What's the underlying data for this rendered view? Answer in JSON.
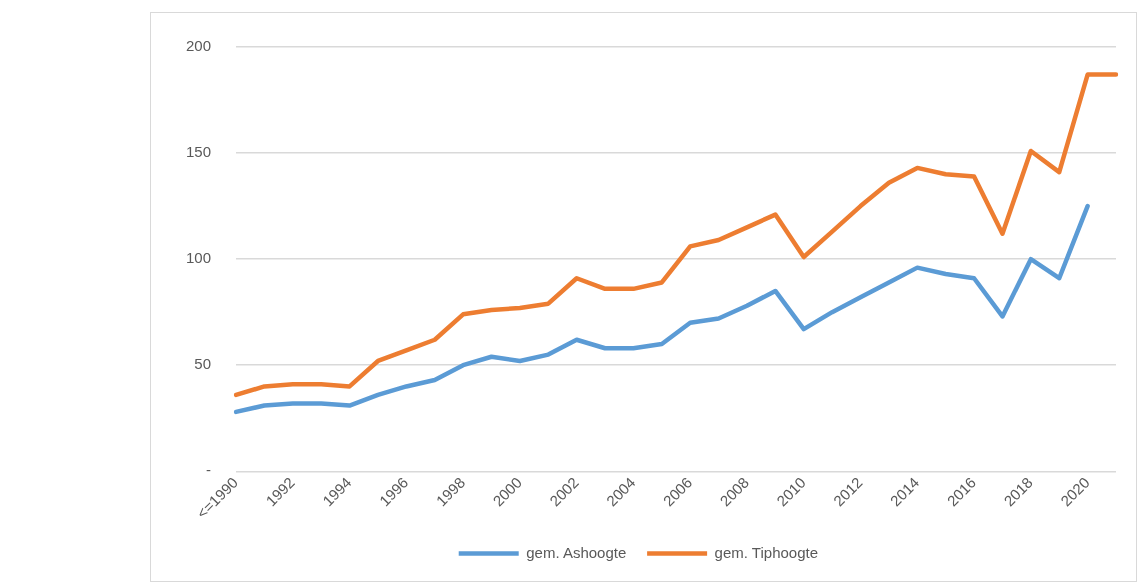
{
  "chart_data": {
    "type": "line",
    "categories": [
      "<=1990",
      null,
      "1992",
      null,
      "1994",
      null,
      "1996",
      null,
      "1998",
      null,
      "2000",
      null,
      "2002",
      null,
      "2004",
      null,
      "2006",
      null,
      "2008",
      null,
      "2010",
      null,
      "2012",
      null,
      "2014",
      null,
      "2016",
      null,
      "2018",
      null,
      "2020",
      null
    ],
    "series": [
      {
        "name": "gem. Ashoogte",
        "color": "#5b9bd5",
        "values": [
          28,
          31,
          32,
          32,
          31,
          36,
          40,
          43,
          50,
          54,
          52,
          55,
          62,
          58,
          58,
          60,
          70,
          72,
          78,
          85,
          67,
          75,
          82,
          89,
          96,
          93,
          91,
          73,
          100,
          91,
          125,
          null
        ]
      },
      {
        "name": "gem. Tiphoogte",
        "color": "#ed7d31",
        "values": [
          36,
          40,
          41,
          41,
          40,
          52,
          57,
          62,
          74,
          76,
          77,
          79,
          91,
          86,
          86,
          89,
          106,
          109,
          115,
          121,
          101,
          113,
          125,
          136,
          143,
          140,
          139,
          112,
          151,
          141,
          187,
          187
        ]
      }
    ],
    "ylim": [
      0,
      200
    ],
    "yticks": [
      {
        "value": 0,
        "label": "-"
      },
      50,
      100,
      150,
      200
    ],
    "grid": "y",
    "legend": "bottom",
    "marker": "none",
    "line_style": "solid"
  }
}
